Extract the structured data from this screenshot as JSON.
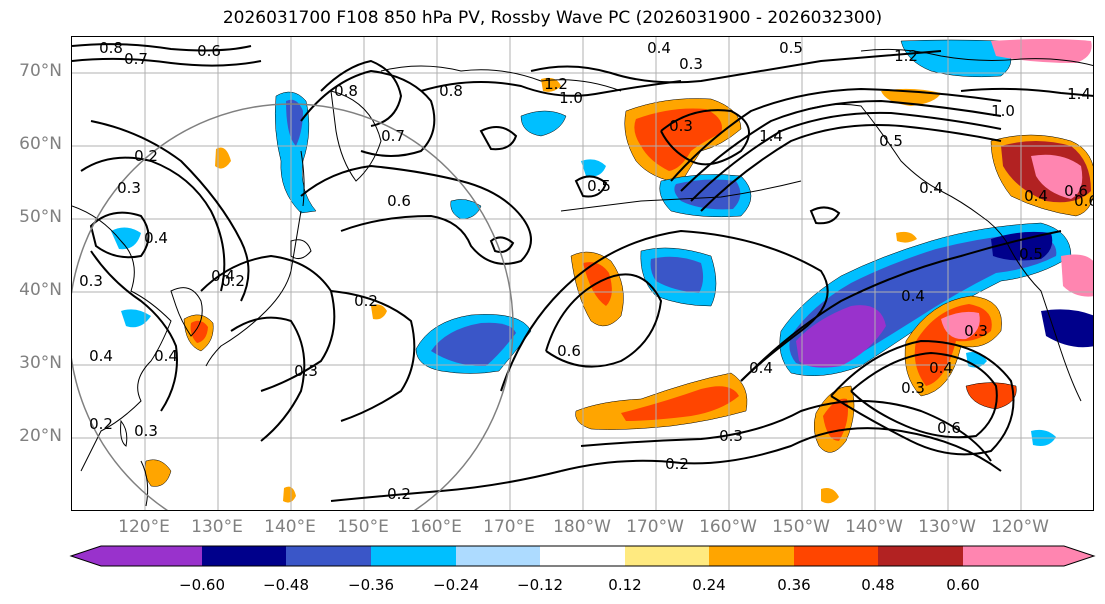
{
  "title": "2026031700 F108 850 hPa PV, Rossby Wave PC (2026031900 - 2026032300)",
  "lat_labels": [
    "70°N",
    "60°N",
    "50°N",
    "40°N",
    "30°N",
    "20°N"
  ],
  "lon_labels": [
    "120°E",
    "130°E",
    "140°E",
    "150°E",
    "160°E",
    "170°E",
    "180°W",
    "170°W",
    "160°W",
    "150°W",
    "140°W",
    "130°W",
    "120°W"
  ],
  "colorbar": {
    "colors": [
      "#9932CC",
      "#00008B",
      "#3A56C8",
      "#00BFFF",
      "#ADDBFF",
      "#FFFFFF",
      "#FFEA80",
      "#FFA500",
      "#FF4500",
      "#B22222",
      "#FF85B0"
    ],
    "tick_labels": [
      "−0.60",
      "−0.48",
      "−0.36",
      "−0.24",
      "−0.12",
      "0.12",
      "0.24",
      "0.36",
      "0.48",
      "0.60"
    ]
  },
  "contour_labels": [
    "0.8",
    "0.6",
    "0.7",
    "0.3",
    "0.8",
    "0.4",
    "0.3",
    "1.2",
    "1.0",
    "0.5",
    "1.2",
    "1.4",
    "1.0",
    "0.8",
    "0.2",
    "0.7",
    "0.5",
    "0.6",
    "1.4",
    "0.4",
    "0.3",
    "0.4",
    "0.5",
    "0.4",
    "0.6",
    "0.3",
    "0.4",
    "0.2",
    "0.2",
    "0.4",
    "0.4",
    "0.3",
    "0.4",
    "0.2",
    "0.3",
    "0.5",
    "0.2",
    "0.2",
    "0.6",
    "0.3",
    "0.4",
    "0.3",
    "0.3",
    "0.4",
    "0.6",
    "0.6"
  ]
}
